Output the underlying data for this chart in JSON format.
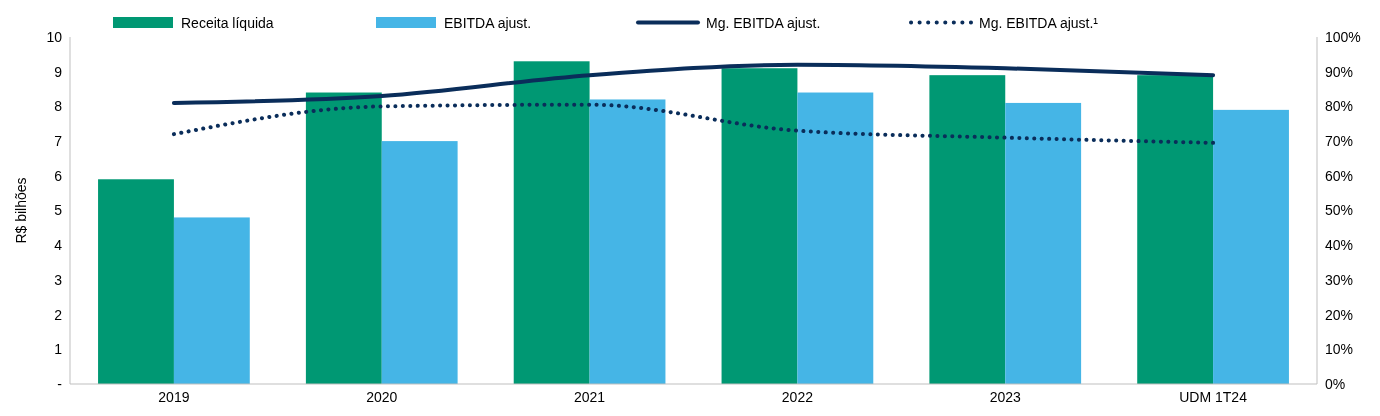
{
  "chart_data": {
    "type": "bar",
    "ylabel": "R$ bilhões",
    "categories": [
      "2019",
      "2020",
      "2021",
      "2022",
      "2023",
      "UDM 1T24"
    ],
    "series": [
      {
        "name": "Receita líquida",
        "color": "#009873",
        "values": [
          5.9,
          8.4,
          9.3,
          9.1,
          8.9,
          8.9
        ]
      },
      {
        "name": "EBITDA ajust.",
        "color": "#45b5e6",
        "values": [
          4.8,
          7.0,
          8.2,
          8.4,
          8.1,
          7.9
        ]
      },
      {
        "name": "Mg. EBITDA ajust.",
        "type": "line",
        "axis": "y2",
        "line_style": "solid",
        "color": "#0a2d5a",
        "values": [
          81,
          83,
          89,
          92,
          91,
          89
        ]
      },
      {
        "name": "Mg. EBITDA ajust.¹",
        "type": "line",
        "axis": "y2",
        "line_style": "dotted",
        "color": "#0a2d5a",
        "values": [
          72,
          80,
          80.5,
          73,
          71,
          69.5
        ]
      }
    ],
    "ylim": [
      0,
      10
    ],
    "yticks": [
      {
        "value": 0,
        "label": "-"
      },
      1,
      2,
      3,
      4,
      5,
      6,
      7,
      8,
      9,
      10
    ],
    "y2lim": [
      0,
      100
    ],
    "y2ticks": [
      {
        "value": 0,
        "label": "0%"
      },
      {
        "value": 10,
        "label": "10%"
      },
      {
        "value": 20,
        "label": "20%"
      },
      {
        "value": 30,
        "label": "30%"
      },
      {
        "value": 40,
        "label": "40%"
      },
      {
        "value": 50,
        "label": "50%"
      },
      {
        "value": 60,
        "label": "60%"
      },
      {
        "value": 70,
        "label": "70%"
      },
      {
        "value": 80,
        "label": "80%"
      },
      {
        "value": 90,
        "label": "90%"
      },
      {
        "value": 100,
        "label": "100%"
      }
    ],
    "grid": false,
    "legend": "top"
  }
}
